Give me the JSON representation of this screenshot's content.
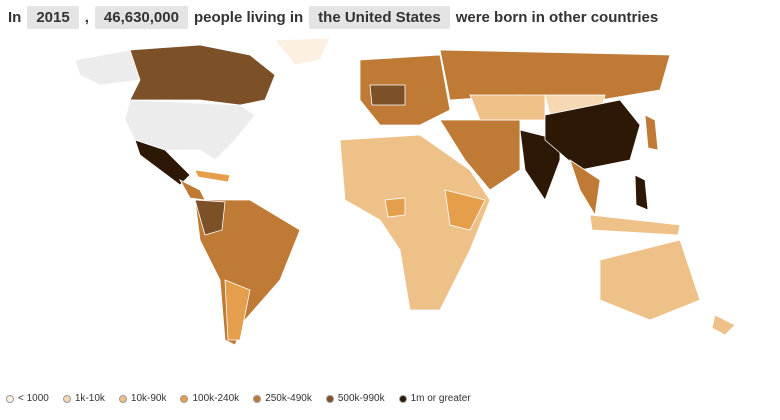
{
  "header": {
    "prefix": "In",
    "year": "2015",
    "comma": ",",
    "count": "46,630,000",
    "middle": "people living in",
    "country": "the United States",
    "suffix": "were born in other countries"
  },
  "legend": [
    {
      "label": "< 1000",
      "color": "#fbf0e2"
    },
    {
      "label": "1k-10k",
      "color": "#f6d9b3"
    },
    {
      "label": "10k-90k",
      "color": "#eec189"
    },
    {
      "label": "100k-240k",
      "color": "#e49e4c"
    },
    {
      "label": "250k-490k",
      "color": "#bf7a36"
    },
    {
      "label": "500k-990k",
      "color": "#7d5128"
    },
    {
      "label": "1m or greater",
      "color": "#2d1806"
    }
  ]
}
